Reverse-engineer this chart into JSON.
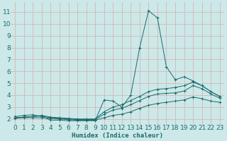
{
  "xlabel": "Humidex (Indice chaleur)",
  "xlim": [
    -0.5,
    23.5
  ],
  "ylim": [
    1.5,
    11.8
  ],
  "bg_color": "#cce8e8",
  "grid_color": "#d4b8b8",
  "line_color": "#1a6b6b",
  "series": [
    {
      "x": [
        0,
        1,
        2,
        3,
        4,
        5,
        6,
        7,
        8,
        9,
        10,
        11,
        12,
        13,
        14,
        15,
        16,
        17,
        18,
        19,
        20,
        21,
        22,
        23
      ],
      "y": [
        2.2,
        2.3,
        2.35,
        2.2,
        1.9,
        1.9,
        1.85,
        1.85,
        1.85,
        1.85,
        3.6,
        3.5,
        3.0,
        4.0,
        8.0,
        11.1,
        10.5,
        6.4,
        5.3,
        5.55,
        5.2,
        4.8,
        4.3,
        3.9
      ]
    },
    {
      "x": [
        0,
        1,
        2,
        3,
        4,
        5,
        6,
        7,
        8,
        9,
        10,
        11,
        12,
        13,
        14,
        15,
        16,
        17,
        18,
        19,
        20,
        21,
        22,
        23
      ],
      "y": [
        2.1,
        2.15,
        2.2,
        2.3,
        2.15,
        2.1,
        2.05,
        2.0,
        2.0,
        2.0,
        2.6,
        3.0,
        3.2,
        3.55,
        3.9,
        4.3,
        4.5,
        4.55,
        4.65,
        4.8,
        5.1,
        4.8,
        4.3,
        3.9
      ]
    },
    {
      "x": [
        0,
        1,
        2,
        3,
        4,
        5,
        6,
        7,
        8,
        9,
        10,
        11,
        12,
        13,
        14,
        15,
        16,
        17,
        18,
        19,
        20,
        21,
        22,
        23
      ],
      "y": [
        2.1,
        2.15,
        2.2,
        2.25,
        2.1,
        2.05,
        2.0,
        1.95,
        1.95,
        1.95,
        2.4,
        2.75,
        2.9,
        3.2,
        3.55,
        3.9,
        4.1,
        4.15,
        4.2,
        4.35,
        4.8,
        4.55,
        4.1,
        3.75
      ]
    },
    {
      "x": [
        0,
        1,
        2,
        3,
        4,
        5,
        6,
        7,
        8,
        9,
        10,
        11,
        12,
        13,
        14,
        15,
        16,
        17,
        18,
        19,
        20,
        21,
        22,
        23
      ],
      "y": [
        2.05,
        2.1,
        2.1,
        2.1,
        2.05,
        2.0,
        1.95,
        1.9,
        1.9,
        1.9,
        2.1,
        2.3,
        2.4,
        2.6,
        2.9,
        3.15,
        3.3,
        3.4,
        3.5,
        3.6,
        3.85,
        3.7,
        3.5,
        3.4
      ]
    }
  ],
  "xticks": [
    0,
    1,
    2,
    3,
    4,
    5,
    6,
    7,
    8,
    9,
    10,
    11,
    12,
    13,
    14,
    15,
    16,
    17,
    18,
    19,
    20,
    21,
    22,
    23
  ],
  "yticks": [
    2,
    3,
    4,
    5,
    6,
    7,
    8,
    9,
    10,
    11
  ],
  "fontsize": 6.5
}
